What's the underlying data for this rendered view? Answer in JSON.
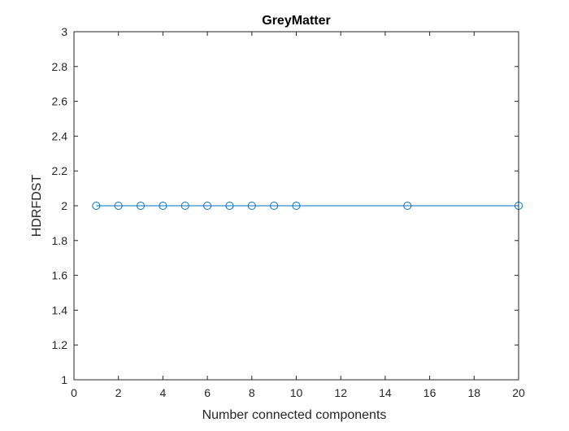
{
  "chart_data": {
    "type": "line",
    "title": "GreyMatter",
    "xlabel": "Number connected components",
    "ylabel": "HDRFDST",
    "xlim": [
      0,
      20
    ],
    "ylim": [
      1,
      3
    ],
    "xticks": [
      0,
      2,
      4,
      6,
      8,
      10,
      12,
      14,
      16,
      18,
      20
    ],
    "yticks": [
      1,
      1.2,
      1.4,
      1.6,
      1.8,
      2,
      2.2,
      2.4,
      2.6,
      2.8,
      3
    ],
    "xtick_labels": [
      "0",
      "2",
      "4",
      "6",
      "8",
      "10",
      "12",
      "14",
      "16",
      "18",
      "20"
    ],
    "ytick_labels": [
      "1",
      "1.2",
      "1.4",
      "1.6",
      "1.8",
      "2",
      "2.2",
      "2.4",
      "2.6",
      "2.8",
      "3"
    ],
    "grid": false,
    "series": [
      {
        "marker": "circle",
        "color": "#0072BD",
        "x": [
          1,
          2,
          3,
          4,
          5,
          6,
          7,
          8,
          9,
          10,
          15,
          20
        ],
        "y": [
          2,
          2,
          2,
          2,
          2,
          2,
          2,
          2,
          2,
          2,
          2,
          2
        ]
      }
    ]
  }
}
